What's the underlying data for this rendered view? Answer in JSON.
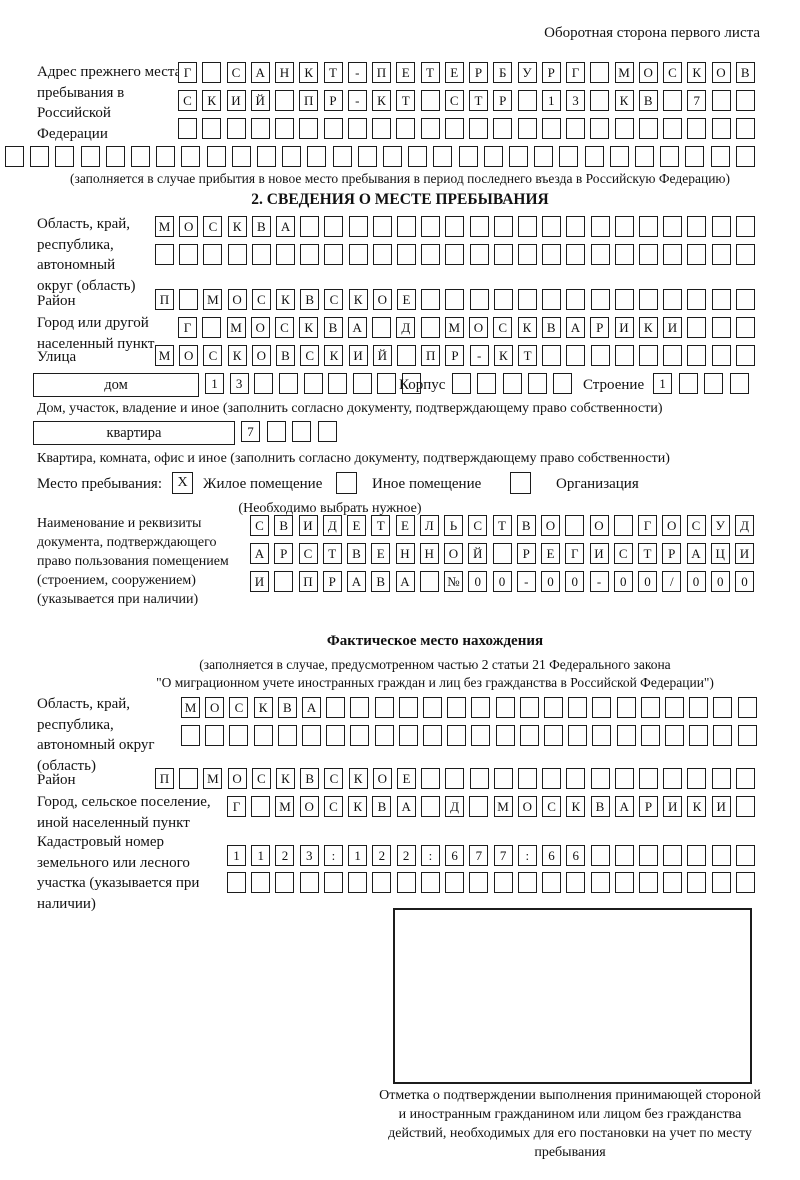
{
  "header": {
    "back_note": "Оборотная сторона первого листа"
  },
  "prev_address": {
    "label": "Адрес прежнего места пребывания в Российской Федерации",
    "row1": {
      "len": 24,
      "cells": [
        "Г",
        "",
        "С",
        "А",
        "Н",
        "К",
        "Т",
        "-",
        "П",
        "Е",
        "Т",
        "Е",
        "Р",
        "Б",
        "У",
        "Р",
        "Г",
        "",
        "М",
        "О",
        "С",
        "К",
        "О",
        "В"
      ]
    },
    "row2": {
      "len": 24,
      "cells": [
        "С",
        "К",
        "И",
        "Й",
        "",
        "П",
        "Р",
        "-",
        "К",
        "Т",
        "",
        "С",
        "Т",
        "Р",
        "",
        "1",
        "3",
        "",
        "К",
        "В",
        "",
        "7"
      ]
    },
    "row3": {
      "len": 24,
      "cells": []
    },
    "row4": {
      "len": 30,
      "cells": []
    },
    "caption": "(заполняется в случае прибытия в новое место пребывания в период последнего въезда в Российскую Федерацию)"
  },
  "section2": {
    "title": "2. СВЕДЕНИЯ О МЕСТЕ ПРЕБЫВАНИЯ",
    "region_label": "Область, край, республика, автономный округ (область)",
    "region_row1": {
      "len": 25,
      "cells": [
        "М",
        "О",
        "С",
        "К",
        "В",
        "А"
      ]
    },
    "region_row2": {
      "len": 25,
      "cells": []
    },
    "district_label": "Район",
    "district_row": {
      "len": 25,
      "cells": [
        "П",
        "",
        "М",
        "О",
        "С",
        "К",
        "В",
        "С",
        "К",
        "О",
        "Е"
      ]
    },
    "city_label": "Город или другой населенный пункт",
    "city_row": {
      "len": 24,
      "cells": [
        "Г",
        "",
        "М",
        "О",
        "С",
        "К",
        "В",
        "А",
        "",
        "Д",
        "",
        "М",
        "О",
        "С",
        "К",
        "В",
        "А",
        "Р",
        "И",
        "К",
        "И"
      ]
    },
    "street_label": "Улица",
    "street_row": {
      "len": 25,
      "cells": [
        "М",
        "О",
        "С",
        "К",
        "О",
        "В",
        "С",
        "К",
        "И",
        "Й",
        "",
        "П",
        "Р",
        "-",
        "К",
        "Т"
      ]
    },
    "house_box_label": "дом",
    "house_row": {
      "len": 9,
      "cells": [
        "1",
        "3"
      ]
    },
    "korpus_label": "Корпус",
    "korpus_row": {
      "len": 5,
      "cells": []
    },
    "stroenie_label": "Строение",
    "stroenie_row": {
      "len": 4,
      "cells": [
        "1"
      ]
    },
    "house_caption": "Дом, участок, владение и иное (заполнить согласно документу, подтверждающему право собственности)",
    "apartment_box_label": "квартира",
    "apartment_row": {
      "len": 4,
      "cells": [
        "7"
      ]
    },
    "apartment_caption": "Квартира, комната, офис и иное (заполнить согласно документу, подтверждающему право собственности)",
    "stay": {
      "label": "Место пребывания:",
      "options": [
        {
          "label": "Жилое помещение",
          "mark": "X"
        },
        {
          "label": "Иное помещение",
          "mark": ""
        },
        {
          "label": "Организация",
          "mark": ""
        }
      ],
      "note": "(Необходимо выбрать нужное)"
    },
    "document_label": "Наименование и реквизиты документа, подтверждающего право пользования помещением (строением, сооружением) (указывается при наличии)",
    "document_row1": {
      "len": 21,
      "cells": [
        "С",
        "В",
        "И",
        "Д",
        "Е",
        "Т",
        "Е",
        "Л",
        "Ь",
        "С",
        "Т",
        "В",
        "О",
        "",
        "О",
        "",
        "Г",
        "О",
        "С",
        "У",
        "Д"
      ]
    },
    "document_row2": {
      "len": 21,
      "cells": [
        "А",
        "Р",
        "С",
        "Т",
        "В",
        "Е",
        "Н",
        "Н",
        "О",
        "Й",
        "",
        "Р",
        "Е",
        "Г",
        "И",
        "С",
        "Т",
        "Р",
        "А",
        "Ц",
        "И"
      ]
    },
    "document_row3": {
      "len": 21,
      "cells": [
        "И",
        "",
        "П",
        "Р",
        "А",
        "В",
        "А",
        "",
        "№",
        "0",
        "0",
        "-",
        "0",
        "0",
        "-",
        "0",
        "0",
        "/",
        "0",
        "0",
        "0"
      ]
    }
  },
  "actual_location": {
    "title": "Фактическое место нахождения",
    "note_line1": "(заполняется в случае, предусмотренном частью 2 статьи 21 Федерального закона",
    "note_line2": "\"О миграционном учете иностранных граждан и лиц без гражданства в Российской Федерации\")",
    "region_label": "Область, край, республика, автономный округ (область)",
    "region_row1": {
      "len": 24,
      "cells": [
        "М",
        "О",
        "С",
        "К",
        "В",
        "А"
      ]
    },
    "region_row2": {
      "len": 24,
      "cells": []
    },
    "district_label": "Район",
    "district_row": {
      "len": 25,
      "cells": [
        "П",
        "",
        "М",
        "О",
        "С",
        "К",
        "В",
        "С",
        "К",
        "О",
        "Е"
      ]
    },
    "city_label": "Город, сельское поселение, иной населенный пункт",
    "city_row": {
      "len": 22,
      "cells": [
        "Г",
        "",
        "М",
        "О",
        "С",
        "К",
        "В",
        "А",
        "",
        "Д",
        "",
        "М",
        "О",
        "С",
        "К",
        "В",
        "А",
        "Р",
        "И",
        "К",
        "И"
      ]
    },
    "cadastral_label": "Кадастровый номер земельного или лесного участка (указывается при наличии)",
    "cadastral_row1": {
      "len": 22,
      "cells": [
        "1",
        "1",
        "2",
        "3",
        ":",
        "1",
        "2",
        "2",
        ":",
        "6",
        "7",
        "7",
        ":",
        "6",
        "6"
      ]
    },
    "cadastral_row2": {
      "len": 22,
      "cells": []
    },
    "stamp_caption": "Отметка о подтверждении выполнения принимающей стороной и иностранным гражданином или лицом без гражданства действий, необходимых для его постановки на учет по месту пребывания"
  }
}
